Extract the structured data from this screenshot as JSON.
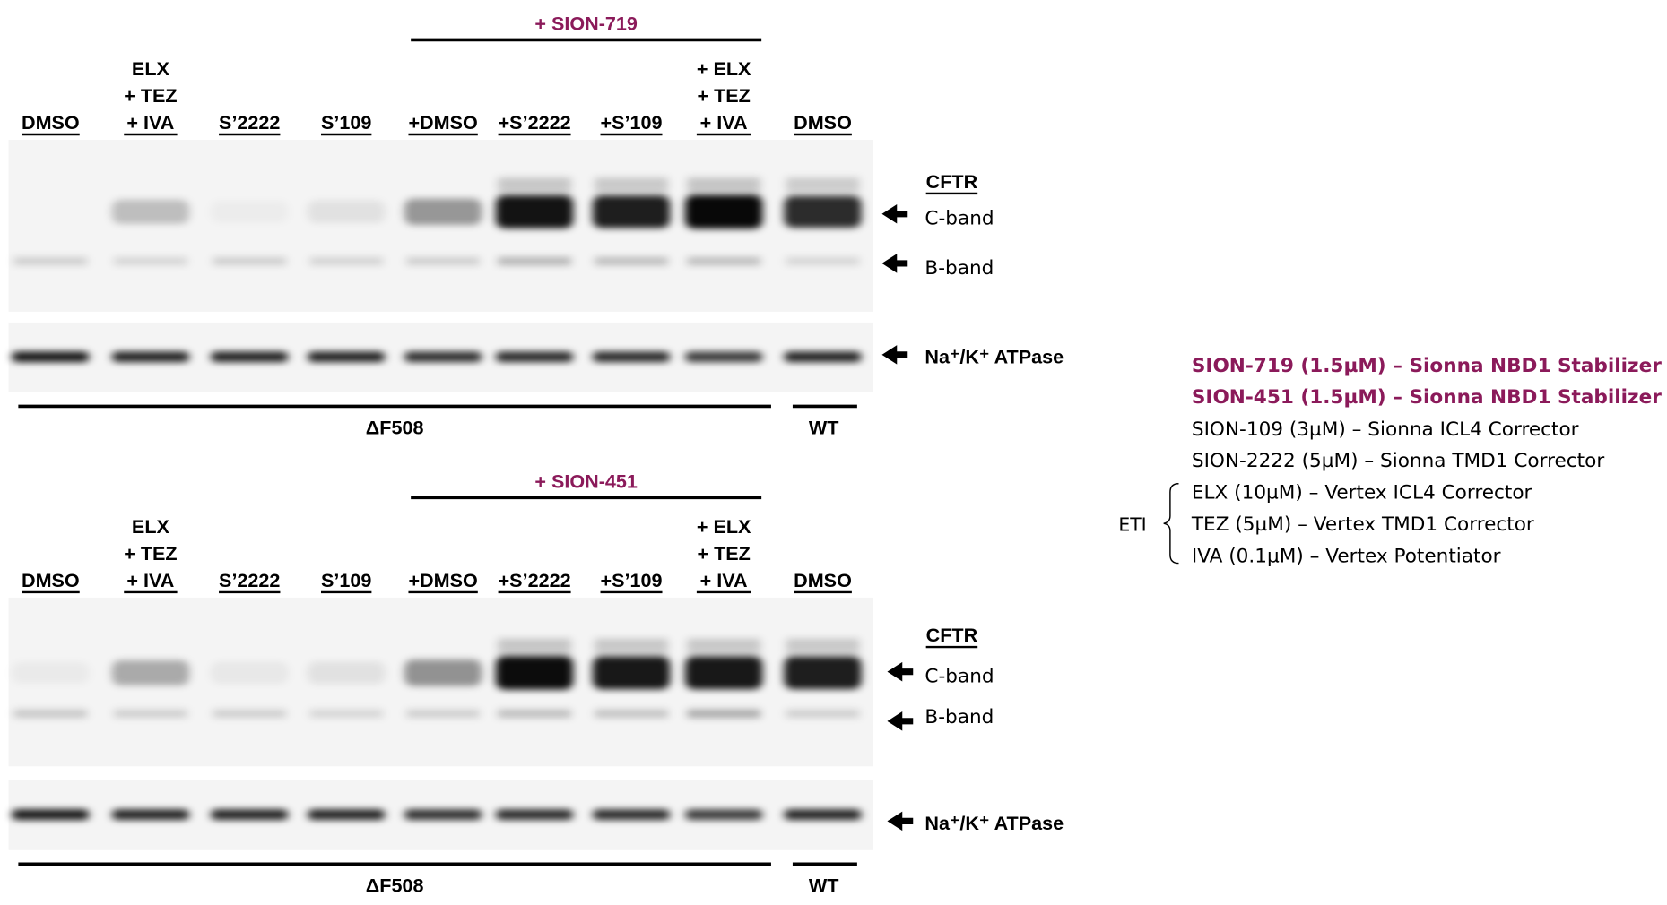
{
  "panels": [
    {
      "treatment_header": "+ SION-719",
      "lanes": [
        [
          "DMSO"
        ],
        [
          "ELX",
          "+ TEZ",
          "+ IVA"
        ],
        [
          "S’2222"
        ],
        [
          "S’109"
        ],
        [
          "+DMSO"
        ],
        [
          "+S’2222"
        ],
        [
          "+S’109"
        ],
        [
          "+ ELX",
          "+ TEZ",
          "+ IVA"
        ],
        [
          "DMSO"
        ]
      ],
      "band_labels": {
        "heading": "CFTR",
        "c_band": "C-band",
        "b_band": "B-band",
        "loading_control": "Na⁺/K⁺ ATPase"
      },
      "groups": [
        "ΔF508",
        "WT"
      ]
    },
    {
      "treatment_header": "+ SION-451",
      "lanes": [
        [
          "DMSO"
        ],
        [
          "ELX",
          "+ TEZ",
          "+ IVA"
        ],
        [
          "S’2222"
        ],
        [
          "S’109"
        ],
        [
          "+DMSO"
        ],
        [
          "+S’2222"
        ],
        [
          "+S’109"
        ],
        [
          "+ ELX",
          "+ TEZ",
          "+ IVA"
        ],
        [
          "DMSO"
        ]
      ],
      "band_labels": {
        "heading": "CFTR",
        "c_band": "C-band",
        "b_band": "B-band",
        "loading_control": "Na⁺/K⁺ ATPase"
      },
      "groups": [
        "ΔF508",
        "WT"
      ]
    }
  ],
  "legend": {
    "stabilizers": [
      "SION-719 (1.5µM) – Sionna NBD1 Stabilizer",
      "SION-451 (1.5µM) – Sionna NBD1 Stabilizer"
    ],
    "correctors": [
      "SION-109 (3µM) – Sionna ICL4 Corrector",
      "SION-2222 (5µM) – Sionna TMD1 Corrector"
    ],
    "eti_label": "ETI",
    "eti_components": [
      "ELX (10µM) – Vertex ICL4 Corrector",
      "TEZ (5µM) – Vertex TMD1 Corrector",
      "IVA (0.1µM) – Vertex Potentiator"
    ]
  }
}
